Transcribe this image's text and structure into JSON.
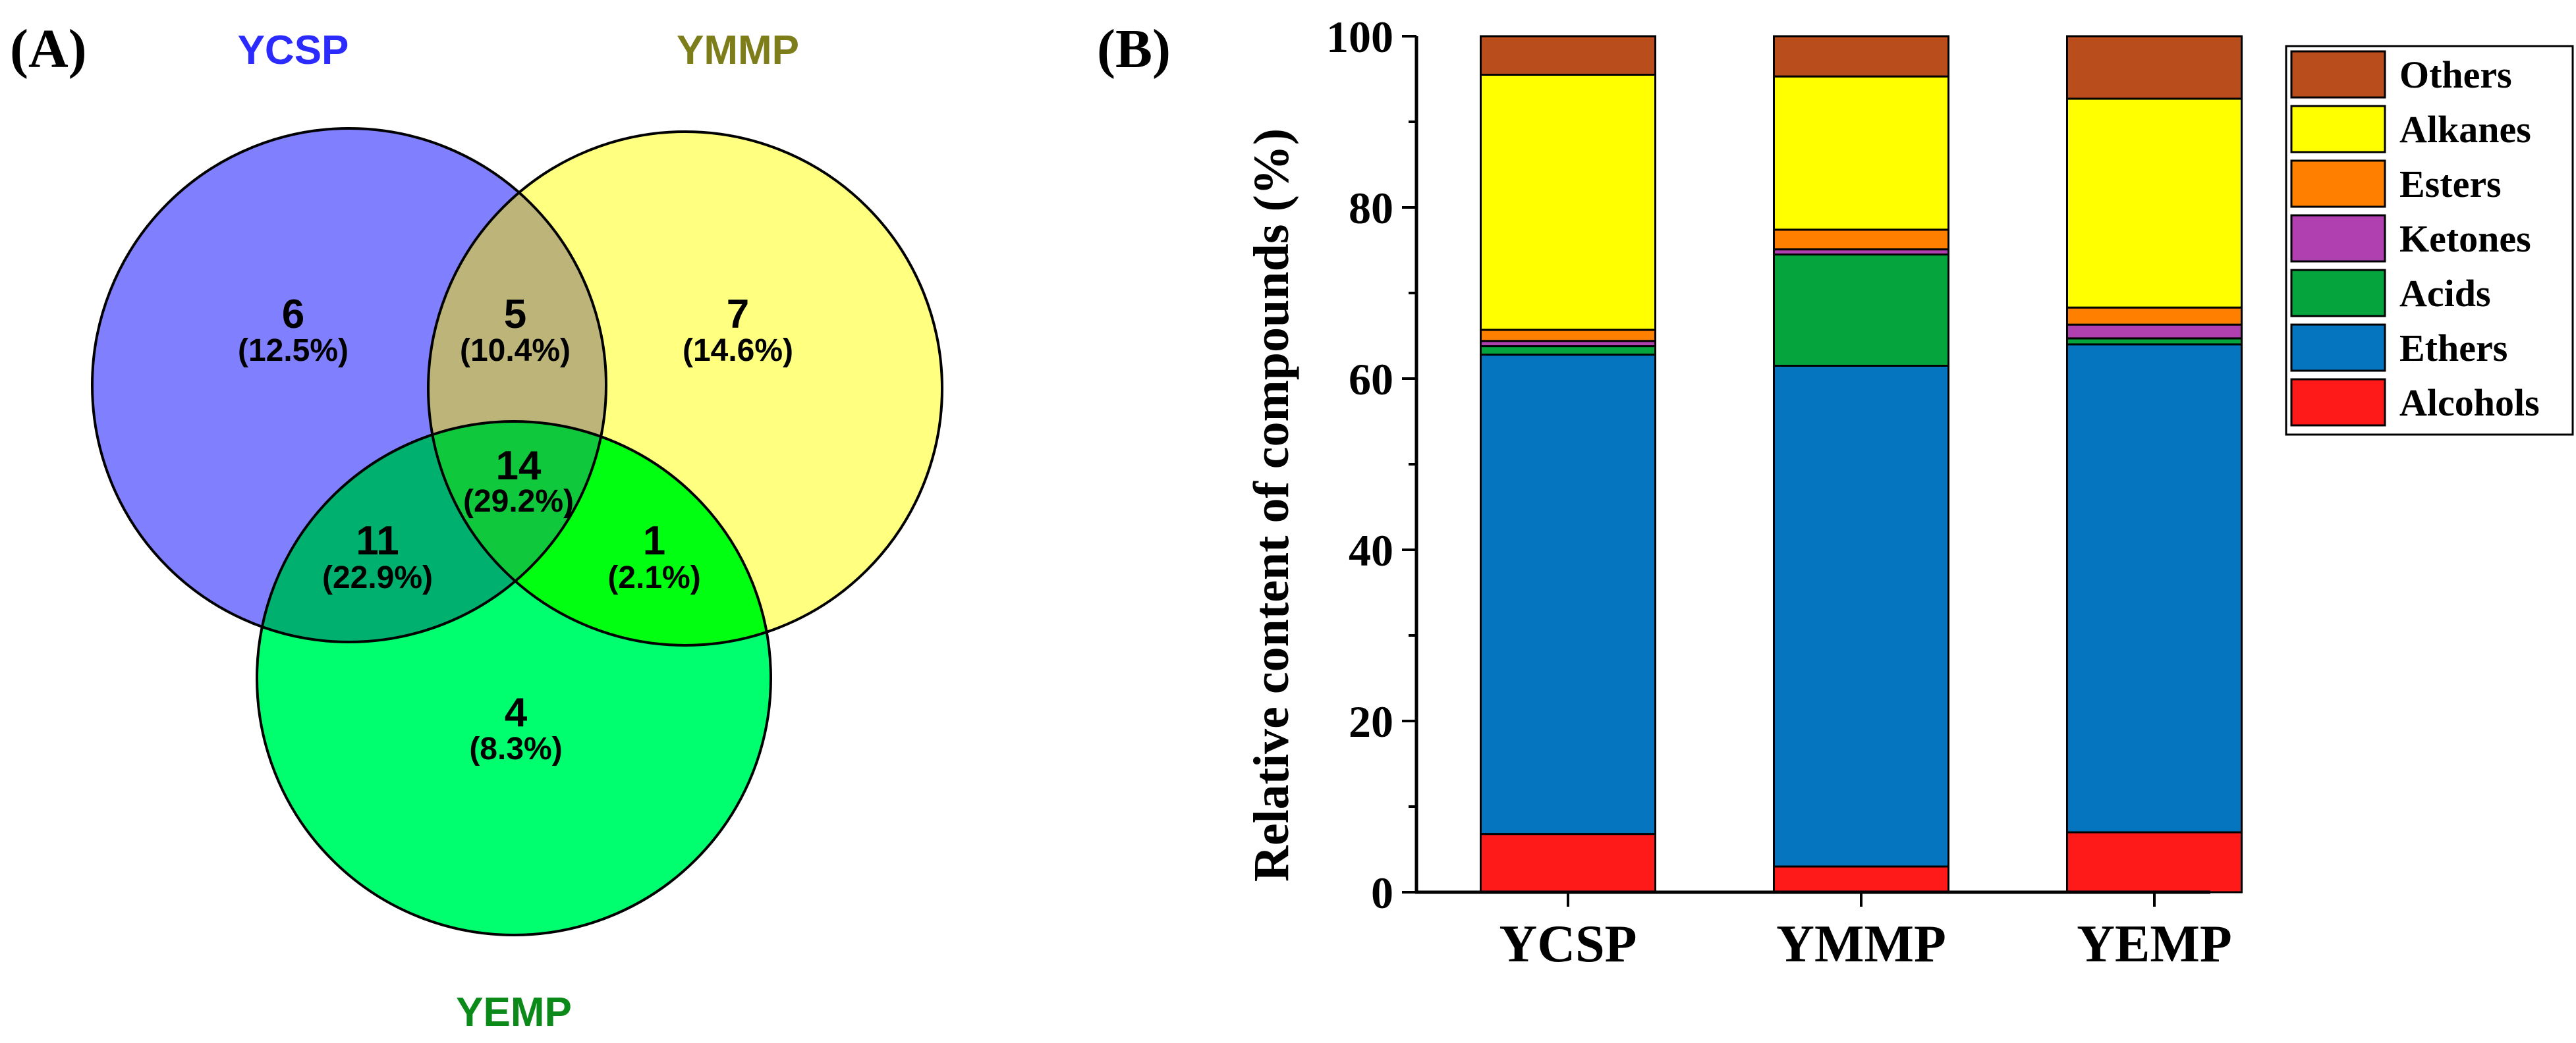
{
  "panel_a": {
    "label": "(A)",
    "sets": [
      {
        "name": "YCSP",
        "color": "#2b2bff",
        "fill": "#8080ff"
      },
      {
        "name": "YMMP",
        "color": "#7d7d1a",
        "fill": "#ffff80"
      },
      {
        "name": "YEMP",
        "color": "#0b8a1a",
        "fill": "#00ff6e"
      }
    ],
    "regions": [
      {
        "id": "ycsp-only",
        "count": "6",
        "pct": "(12.5%)"
      },
      {
        "id": "ycsp-ymmp",
        "count": "5",
        "pct": "(10.4%)"
      },
      {
        "id": "ymmp-only",
        "count": "7",
        "pct": "(14.6%)"
      },
      {
        "id": "all-three",
        "count": "14",
        "pct": "(29.2%)"
      },
      {
        "id": "ycsp-yemp",
        "count": "11",
        "pct": "(22.9%)"
      },
      {
        "id": "ymmp-yemp",
        "count": "1",
        "pct": "(2.1%)"
      },
      {
        "id": "yemp-only",
        "count": "4",
        "pct": "(8.3%)"
      }
    ],
    "intersection_colors": {
      "ycsp-ymmp": "#bcb478",
      "ycsp-yemp": "#00b06e",
      "ymmp-yemp": "#00ff10",
      "all-three": "#10c83c"
    }
  },
  "panel_b": {
    "label": "(B)",
    "chart_data": {
      "type": "bar",
      "stacked": true,
      "title": "",
      "xlabel": "",
      "ylabel": "Relative content of compounds (%)",
      "categories": [
        "YCSP",
        "YMMP",
        "YEMP"
      ],
      "ylim": [
        0,
        100
      ],
      "yticks": [
        "0",
        "20",
        "40",
        "60",
        "80",
        "100"
      ],
      "series": [
        {
          "name": "Alcohols",
          "color": "#ff1a1a",
          "values": [
            6.8,
            3.0,
            7.0
          ]
        },
        {
          "name": "Ethers",
          "color": "#0575c0",
          "values": [
            56.0,
            58.5,
            57.0
          ]
        },
        {
          "name": "Acids",
          "color": "#05a43d",
          "values": [
            1.0,
            13.0,
            0.7
          ]
        },
        {
          "name": "Ketones",
          "color": "#b040b0",
          "values": [
            0.6,
            0.6,
            1.6
          ]
        },
        {
          "name": "Esters",
          "color": "#ff7f00",
          "values": [
            1.3,
            2.3,
            2.0
          ]
        },
        {
          "name": "Alkanes",
          "color": "#ffff00",
          "values": [
            29.8,
            17.9,
            24.4
          ]
        },
        {
          "name": "Others",
          "color": "#b94e1c",
          "values": [
            4.5,
            4.7,
            7.3
          ]
        }
      ],
      "legend_order": [
        "Others",
        "Alkanes",
        "Esters",
        "Ketones",
        "Acids",
        "Ethers",
        "Alcohols"
      ],
      "legend_position": "top-right"
    }
  }
}
